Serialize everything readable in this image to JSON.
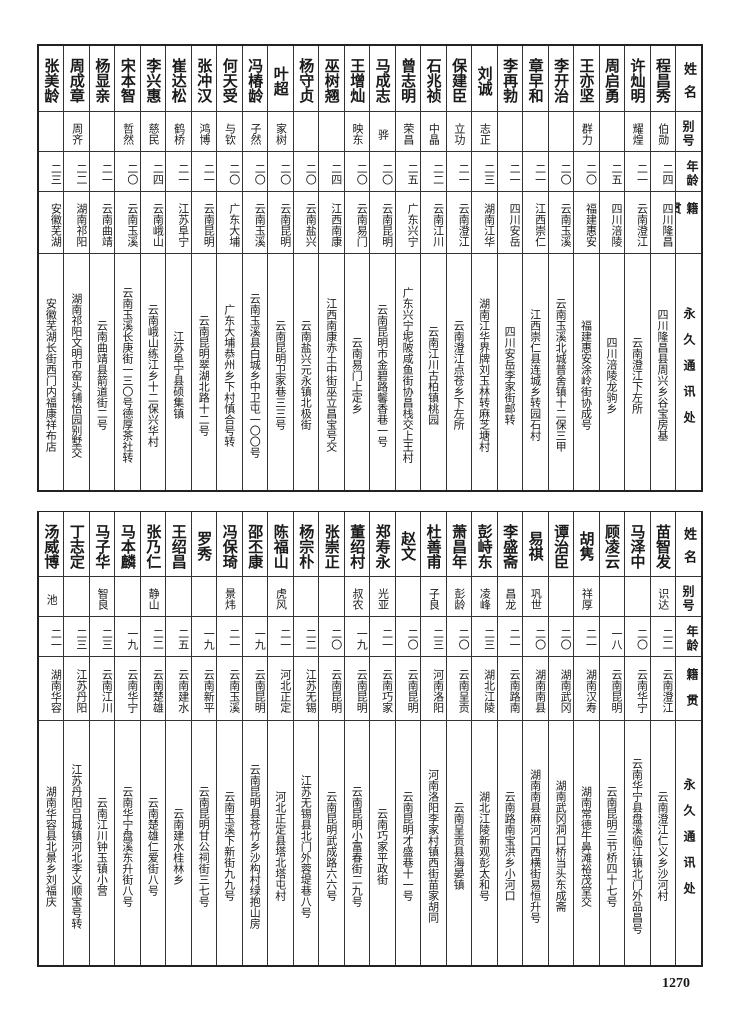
{
  "headers": {
    "name": "姓名",
    "alias": "别号",
    "age": "年龄",
    "origin": "籍贯",
    "address": "永久通讯处"
  },
  "top_rows": [
    {
      "name": "程昌秀",
      "alias": "伯勋",
      "age": "二四",
      "origin": "四川隆昌",
      "address": "四川隆昌县周兴乡谷宝房基"
    },
    {
      "name": "许灿明",
      "alias": "耀煌",
      "age": "二一",
      "origin": "云南澄江",
      "address": "云南澄江下左所"
    },
    {
      "name": "周启勇",
      "alias": "",
      "age": "二五",
      "origin": "四川涪陵",
      "address": "四川涪陵龙驹乡"
    },
    {
      "name": "王亦坚",
      "alias": "群力",
      "age": "二〇",
      "origin": "福建惠安",
      "address": "福建惠安涂岭街协成号"
    },
    {
      "name": "李开治",
      "alias": "",
      "age": "二〇",
      "origin": "云南玉溪",
      "address": "云南玉溪北城普舍镇十二保三甲"
    },
    {
      "name": "章早和",
      "alias": "",
      "age": "二一",
      "origin": "江西崇仁",
      "address": "江西崇仁县连城乡转园石村"
    },
    {
      "name": "李再勃",
      "alias": "",
      "age": "二一",
      "origin": "四川安岳",
      "address": "四川安岳李家街邮转"
    },
    {
      "name": "刘诚",
      "alias": "志正",
      "age": "二三",
      "origin": "湖南江华",
      "address": "湖南江华界牌刘玉林转麻芝塘村"
    },
    {
      "name": "保建臣",
      "alias": "立功",
      "age": "二一",
      "origin": "云南澄江",
      "address": "云南澄江点苍乡下左所"
    },
    {
      "name": "石兆祯",
      "alias": "中晶",
      "age": "二二",
      "origin": "云南江川",
      "address": "云南江川古柏镇桃园"
    },
    {
      "name": "曾志明",
      "alias": "荣昌",
      "age": "二五",
      "origin": "广东兴宁",
      "address": "广东兴宁坭陂咸鱼街协昌栈交上王村"
    },
    {
      "name": "马成志",
      "alias": "骅",
      "age": "二〇",
      "origin": "云南昆明",
      "address": "云南昆明市金碧路馨香巷一号"
    },
    {
      "name": "王增灿",
      "alias": "映东",
      "age": "二〇",
      "origin": "云南易门",
      "address": "云南易门上定乡"
    },
    {
      "name": "巫树翘",
      "alias": "",
      "age": "二四",
      "origin": "江西南康",
      "address": "江西南康赤土中街巫立昌宝号交"
    },
    {
      "name": "杨守贞",
      "alias": "",
      "age": "二〇",
      "origin": "云南盐兴",
      "address": "云南盐兴元永镇北极街"
    },
    {
      "name": "叶超",
      "alias": "家树",
      "age": "二〇",
      "origin": "云南昆明",
      "address": "云南昆明卫家巷三三号"
    },
    {
      "name": "冯椿龄",
      "alias": "子然",
      "age": "二〇",
      "origin": "云南玉溪",
      "address": "云南玉溪县白城乡中卫屯一〇〇号"
    },
    {
      "name": "何天受",
      "alias": "与钦",
      "age": "二〇",
      "origin": "广东大埔",
      "address": "广东大埔恭州乡下村慎合号转"
    },
    {
      "name": "张冲汉",
      "alias": "鸿博",
      "age": "二一",
      "origin": "云南昆明",
      "address": "云南昆明翠湖北路十二号"
    },
    {
      "name": "崔达松",
      "alias": "鹤桥",
      "age": "二一",
      "origin": "江苏阜宁",
      "address": "江苏阜宁县硕集镇"
    },
    {
      "name": "李兴惠",
      "alias": "慈民",
      "age": "二四",
      "origin": "云南峨山",
      "address": "云南峨山练江乡十二保兴华村"
    },
    {
      "name": "宋本智",
      "alias": "哲然",
      "age": "二〇",
      "origin": "云南玉溪",
      "address": "云南玉溪长庚街一三〇号德厚茶社转"
    },
    {
      "name": "杨显亲",
      "alias": "",
      "age": "二一",
      "origin": "云南曲靖",
      "address": "云南曲靖县箭道街二号"
    },
    {
      "name": "周成章",
      "alias": "周齐",
      "age": "二二",
      "origin": "湖南祁阳",
      "address": "湖南祁阳文明市窑头铺怡园别墅交"
    },
    {
      "name": "张美龄",
      "alias": "",
      "age": "二三",
      "origin": "安徽芜湖",
      "address": "安徽芜湖长街西门内福康祥布店"
    }
  ],
  "bottom_rows": [
    {
      "name": "苗智发",
      "alias": "识达",
      "age": "二二",
      "origin": "云南澄江",
      "address": "云南澄江仁义乡沙河村"
    },
    {
      "name": "马泽中",
      "alias": "",
      "age": "二〇",
      "origin": "云南华宁",
      "address": "云南华宁县盘溪临江镇北门外品昌号"
    },
    {
      "name": "顾凌云",
      "alias": "",
      "age": "一八",
      "origin": "云南昆明",
      "address": "云南昆明三节桥四十七号"
    },
    {
      "name": "胡隽",
      "alias": "祥厚",
      "age": "二一",
      "origin": "湖南汉寿",
      "address": "湖南常德牛鼻滩裕茂堂交"
    },
    {
      "name": "谭治臣",
      "alias": "",
      "age": "二〇",
      "origin": "湖南武冈",
      "address": "湖南武冈洞口桥当头东成斋"
    },
    {
      "name": "易祺",
      "alias": "巩世",
      "age": "二〇",
      "origin": "湖南南县",
      "address": "湖南南县麻河口西横街易恒升号"
    },
    {
      "name": "李盛斋",
      "alias": "昌龙",
      "age": "二一",
      "origin": "云南路南",
      "address": "云南路南宝洪乡小河口"
    },
    {
      "name": "彭峙东",
      "alias": "凌峰",
      "age": "二三",
      "origin": "湖北江陵",
      "address": "湖北江陵新观彭太和号"
    },
    {
      "name": "萧昌年",
      "alias": "彭龄",
      "age": "二〇",
      "origin": "云南呈贡",
      "address": "云南呈贡县海晏镇"
    },
    {
      "name": "杜善甫",
      "alias": "子良",
      "age": "二三",
      "origin": "河南洛阳",
      "address": "河南洛阳李家村镇西街苗家胡同"
    },
    {
      "name": "赵文",
      "alias": "",
      "age": "二〇",
      "origin": "云南昆明",
      "address": "云南昆明才盛巷十一号"
    },
    {
      "name": "郑寿永",
      "alias": "光亚",
      "age": "二一",
      "origin": "云南巧家",
      "address": "云南巧家平政街"
    },
    {
      "name": "董绍村",
      "alias": "叔农",
      "age": "一九",
      "origin": "云南昆明",
      "address": "云南昆明小富春街二九号"
    },
    {
      "name": "张崇正",
      "alias": "",
      "age": "二〇",
      "origin": "云南昆明",
      "address": "云南昆明武成路六六号"
    },
    {
      "name": "杨宗朴",
      "alias": "",
      "age": "二二",
      "origin": "江苏无锡",
      "address": "江苏无锡县北门外蓉堤巷八号"
    },
    {
      "name": "陈福山",
      "alias": "虎风",
      "age": "二一",
      "origin": "河北正定",
      "address": "河北正定县塔北塔屯村"
    },
    {
      "name": "邵丕康",
      "alias": "",
      "age": "一九",
      "origin": "云南昆明",
      "address": "云南昆明县苍竹乡沙构村绿抱山房"
    },
    {
      "name": "冯保琦",
      "alias": "景炜",
      "age": "二一",
      "origin": "云南玉溪",
      "address": "云南玉溪下新街九九号"
    },
    {
      "name": "罗秀",
      "alias": "",
      "age": "一九",
      "origin": "云南新平",
      "address": "云南昆明甘公祠街三七号"
    },
    {
      "name": "王绍昌",
      "alias": "",
      "age": "二五",
      "origin": "云南建水",
      "address": "云南建水桂林乡"
    },
    {
      "name": "张乃仁",
      "alias": "静山",
      "age": "二二",
      "origin": "云南楚雄",
      "address": "云南楚雄仁爱街八号"
    },
    {
      "name": "马本麟",
      "alias": "",
      "age": "一九",
      "origin": "云南华宁",
      "address": "云南华宁盘溪东升街八号"
    },
    {
      "name": "马子华",
      "alias": "智良",
      "age": "二三",
      "origin": "云南江川",
      "address": "云南江川钟玉镇小营"
    },
    {
      "name": "丁志定",
      "alias": "",
      "age": "二三",
      "origin": "江苏丹阳",
      "address": "江苏丹阳吕城镇河北李义顺宝号转"
    },
    {
      "name": "汤威博",
      "alias": "池",
      "age": "二一",
      "origin": "湖南华容",
      "address": "湖南华容县北景乡刘福庆"
    }
  ],
  "page_number": "1270"
}
